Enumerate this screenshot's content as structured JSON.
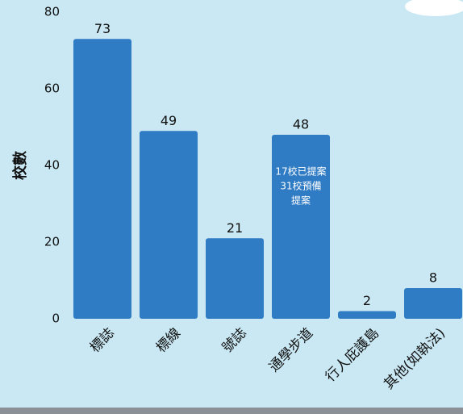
{
  "chart_data": {
    "type": "bar",
    "ylabel": "校數",
    "categories": [
      "標誌",
      "標線",
      "號誌",
      "通學步道",
      "行人庇護島",
      "其他(如執法)"
    ],
    "values": [
      73,
      49,
      21,
      48,
      2,
      8
    ],
    "color": "#2f7bc4",
    "annotation": [
      "17校已提案",
      "31校預備",
      "提案"
    ],
    "ylim": [
      0,
      80
    ],
    "yticks": [
      0,
      20,
      40,
      60,
      80
    ],
    "grid": false
  }
}
